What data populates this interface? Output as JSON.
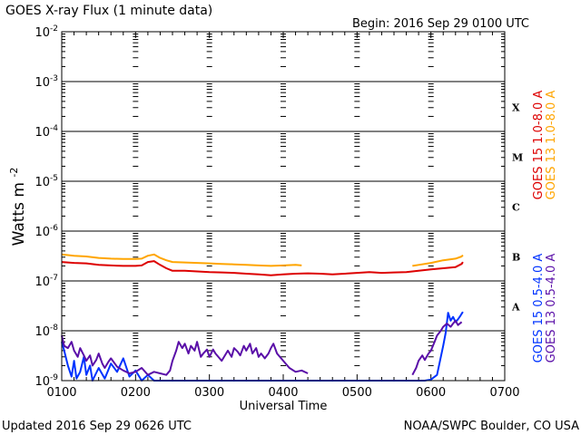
{
  "title": "GOES X-ray Flux (1 minute data)",
  "begin_label": "Begin: 2016 Sep 29 0100 UTC",
  "footer_left": "Updated 2016 Sep 29 0626 UTC",
  "footer_right": "NOAA/SWPC Boulder, CO USA",
  "colors": {
    "goes15_long": "#dd0000",
    "goes13_long": "#ffa500",
    "goes15_short": "#0033ff",
    "goes13_short": "#5a0fa8"
  },
  "chart_data": {
    "type": "line",
    "xlabel": "Universal Time",
    "ylabel": "Watts m",
    "ylabel_exponent": "-2",
    "y_scale": "log",
    "ylim": [
      1e-09,
      0.01
    ],
    "xlim": [
      "0100",
      "0700"
    ],
    "x_ticks": [
      "0100",
      "0200",
      "0300",
      "0400",
      "0500",
      "0600",
      "0700"
    ],
    "y_ticks": [
      {
        "base": "10",
        "exp": "-2"
      },
      {
        "base": "10",
        "exp": "-3"
      },
      {
        "base": "10",
        "exp": "-4"
      },
      {
        "base": "10",
        "exp": "-5"
      },
      {
        "base": "10",
        "exp": "-6"
      },
      {
        "base": "10",
        "exp": "-7"
      },
      {
        "base": "10",
        "exp": "-8"
      },
      {
        "base": "10",
        "exp": "-9"
      }
    ],
    "flare_classes": [
      {
        "label": "X",
        "level": 0.0001
      },
      {
        "label": "M",
        "level": 1e-05
      },
      {
        "label": "C",
        "level": 1e-06
      },
      {
        "label": "B",
        "level": 1e-07
      },
      {
        "label": "A",
        "level": 1e-08
      }
    ],
    "grid": true,
    "legend_position": "right",
    "series": [
      {
        "name": "GOES 15 1.0-8.0 A",
        "color_key": "goes15_long",
        "points": [
          [
            "0100",
            2.4e-07
          ],
          [
            "0110",
            2.3e-07
          ],
          [
            "0120",
            2.25e-07
          ],
          [
            "0130",
            2.1e-07
          ],
          [
            "0140",
            2.05e-07
          ],
          [
            "0150",
            2e-07
          ],
          [
            "0200",
            2e-07
          ],
          [
            "0205",
            2.05e-07
          ],
          [
            "0210",
            2.4e-07
          ],
          [
            "0215",
            2.5e-07
          ],
          [
            "0220",
            2.1e-07
          ],
          [
            "0225",
            1.8e-07
          ],
          [
            "0230",
            1.6e-07
          ],
          [
            "0240",
            1.6e-07
          ],
          [
            "0250",
            1.55e-07
          ],
          [
            "0300",
            1.5e-07
          ],
          [
            "0310",
            1.48e-07
          ],
          [
            "0320",
            1.45e-07
          ],
          [
            "0330",
            1.4e-07
          ],
          [
            "0340",
            1.35e-07
          ],
          [
            "0350",
            1.3e-07
          ],
          [
            "0400",
            1.35e-07
          ],
          [
            "0410",
            1.4e-07
          ],
          [
            "0420",
            1.42e-07
          ],
          [
            "0430",
            1.4e-07
          ],
          [
            "0440",
            1.35e-07
          ],
          [
            "0450",
            1.4e-07
          ],
          [
            "0500",
            1.45e-07
          ],
          [
            "0510",
            1.5e-07
          ],
          [
            "0520",
            1.45e-07
          ],
          [
            "0530",
            1.48e-07
          ],
          [
            "0540",
            1.5e-07
          ],
          [
            "0550",
            1.6e-07
          ],
          [
            "0600",
            1.7e-07
          ],
          [
            "0610",
            1.8e-07
          ],
          [
            "0620",
            1.9e-07
          ],
          [
            "0625",
            2.2e-07
          ],
          [
            "0626",
            2.4e-07
          ]
        ]
      },
      {
        "name": "GOES 13 1.0-8.0 A",
        "color_key": "goes13_long",
        "segments": [
          [
            [
              "0100",
              3.4e-07
            ],
            [
              "0110",
              3.2e-07
            ],
            [
              "0120",
              3.1e-07
            ],
            [
              "0130",
              2.9e-07
            ],
            [
              "0140",
              2.8e-07
            ],
            [
              "0150",
              2.75e-07
            ],
            [
              "0200",
              2.75e-07
            ],
            [
              "0205",
              2.8e-07
            ],
            [
              "0210",
              3.2e-07
            ],
            [
              "0215",
              3.4e-07
            ],
            [
              "0220",
              2.9e-07
            ],
            [
              "0225",
              2.6e-07
            ],
            [
              "0230",
              2.4e-07
            ],
            [
              "0240",
              2.35e-07
            ],
            [
              "0250",
              2.3e-07
            ],
            [
              "0300",
              2.25e-07
            ],
            [
              "0310",
              2.2e-07
            ],
            [
              "0320",
              2.15e-07
            ],
            [
              "0330",
              2.1e-07
            ],
            [
              "0340",
              2.05e-07
            ],
            [
              "0350",
              2e-07
            ],
            [
              "0400",
              2.05e-07
            ],
            [
              "0410",
              2.1e-07
            ],
            [
              "0415",
              2.05e-07
            ]
          ],
          [
            [
              "0545",
              2e-07
            ],
            [
              "0550",
              2.1e-07
            ],
            [
              "0600",
              2.3e-07
            ],
            [
              "0610",
              2.6e-07
            ],
            [
              "0620",
              2.8e-07
            ],
            [
              "0625",
              3.1e-07
            ],
            [
              "0626",
              3.3e-07
            ]
          ]
        ]
      },
      {
        "name": "GOES 15 0.5-4.0 A",
        "color_key": "goes15_short",
        "points": [
          [
            "0100",
            6e-09
          ],
          [
            "0102",
            4e-09
          ],
          [
            "0105",
            2e-09
          ],
          [
            "0108",
            1.2e-09
          ],
          [
            "0110",
            2.5e-09
          ],
          [
            "0112",
            1.1e-09
          ],
          [
            "0115",
            1.5e-09
          ],
          [
            "0118",
            3e-09
          ],
          [
            "0120",
            1.3e-09
          ],
          [
            "0123",
            2e-09
          ],
          [
            "0125",
            1e-09
          ],
          [
            "0130",
            1.8e-09
          ],
          [
            "0135",
            1.1e-09
          ],
          [
            "0140",
            2.2e-09
          ],
          [
            "0145",
            1.5e-09
          ],
          [
            "0150",
            2.8e-09
          ],
          [
            "0155",
            1.2e-09
          ],
          [
            "0200",
            1.6e-09
          ],
          [
            "0205",
            1e-09
          ],
          [
            "0210",
            1.3e-09
          ],
          [
            "0215",
            1e-09
          ],
          [
            "0300",
            1e-09
          ],
          [
            "0400",
            1e-09
          ],
          [
            "0500",
            1e-09
          ],
          [
            "0540",
            1e-09
          ],
          [
            "0550",
            1e-09
          ],
          [
            "0555",
            1e-09
          ],
          [
            "0600",
            1.05e-09
          ],
          [
            "0605",
            1.3e-09
          ],
          [
            "0610",
            5e-09
          ],
          [
            "0612",
            9e-09
          ],
          [
            "0614",
            2.3e-08
          ],
          [
            "0616",
            1.6e-08
          ],
          [
            "0618",
            1.9e-08
          ],
          [
            "0620",
            1.5e-08
          ],
          [
            "0622",
            1.7e-08
          ],
          [
            "0624",
            2e-08
          ],
          [
            "0626",
            2.4e-08
          ]
        ]
      },
      {
        "name": "GOES 13 0.5-4.0 A",
        "color_key": "goes13_short",
        "segments": [
          [
            [
              "0100",
              8e-09
            ],
            [
              "0102",
              5e-09
            ],
            [
              "0105",
              4.5e-09
            ],
            [
              "0108",
              6e-09
            ],
            [
              "0110",
              4e-09
            ],
            [
              "0113",
              3e-09
            ],
            [
              "0115",
              4.5e-09
            ],
            [
              "0118",
              3.2e-09
            ],
            [
              "0120",
              2.5e-09
            ],
            [
              "0123",
              3.2e-09
            ],
            [
              "0125",
              2e-09
            ],
            [
              "0128",
              2.6e-09
            ],
            [
              "0130",
              3.5e-09
            ],
            [
              "0133",
              2.2e-09
            ],
            [
              "0135",
              1.8e-09
            ],
            [
              "0138",
              2.4e-09
            ],
            [
              "0140",
              2.8e-09
            ],
            [
              "0145",
              1.9e-09
            ],
            [
              "0150",
              1.6e-09
            ],
            [
              "0155",
              1.4e-09
            ],
            [
              "0200",
              1.5e-09
            ],
            [
              "0205",
              1.8e-09
            ],
            [
              "0210",
              1.3e-09
            ],
            [
              "0215",
              1.5e-09
            ],
            [
              "0220",
              1.4e-09
            ],
            [
              "0225",
              1.3e-09
            ],
            [
              "0228",
              1.6e-09
            ],
            [
              "0230",
              2.5e-09
            ],
            [
              "0233",
              4e-09
            ],
            [
              "0235",
              6e-09
            ],
            [
              "0238",
              4.5e-09
            ],
            [
              "0240",
              5.5e-09
            ],
            [
              "0243",
              3.5e-09
            ],
            [
              "0245",
              5e-09
            ],
            [
              "0248",
              4e-09
            ],
            [
              "0250",
              6e-09
            ],
            [
              "0253",
              3e-09
            ],
            [
              "0255",
              3.5e-09
            ],
            [
              "0258",
              4.2e-09
            ],
            [
              "0300",
              3e-09
            ],
            [
              "0303",
              4.2e-09
            ],
            [
              "0305",
              3.5e-09
            ],
            [
              "0310",
              2.5e-09
            ],
            [
              "0315",
              4e-09
            ],
            [
              "0318",
              3e-09
            ],
            [
              "0320",
              4.5e-09
            ],
            [
              "0323",
              3.8e-09
            ],
            [
              "0325",
              3.2e-09
            ],
            [
              "0328",
              5e-09
            ],
            [
              "0330",
              4e-09
            ],
            [
              "0333",
              5.5e-09
            ],
            [
              "0335",
              3.5e-09
            ],
            [
              "0338",
              4.5e-09
            ],
            [
              "0340",
              3e-09
            ],
            [
              "0342",
              3.5e-09
            ],
            [
              "0345",
              2.8e-09
            ],
            [
              "0348",
              3.5e-09
            ],
            [
              "0350",
              4.5e-09
            ],
            [
              "0352",
              5.5e-09
            ],
            [
              "0355",
              3.5e-09
            ],
            [
              "0400",
              2.5e-09
            ],
            [
              "0405",
              1.8e-09
            ],
            [
              "0410",
              1.5e-09
            ],
            [
              "0415",
              1.6e-09
            ],
            [
              "0420",
              1.4e-09
            ]
          ],
          [
            [
              "0545",
              1.3e-09
            ],
            [
              "0548",
              1.8e-09
            ],
            [
              "0550",
              2.5e-09
            ],
            [
              "0553",
              3.2e-09
            ],
            [
              "0555",
              2.6e-09
            ],
            [
              "0558",
              3.5e-09
            ],
            [
              "0600",
              4e-09
            ],
            [
              "0603",
              6e-09
            ],
            [
              "0605",
              8e-09
            ],
            [
              "0608",
              1e-08
            ],
            [
              "0610",
              1.2e-08
            ],
            [
              "0613",
              1.4e-08
            ],
            [
              "0616",
              1.2e-08
            ],
            [
              "0618",
              1.4e-08
            ],
            [
              "0620",
              1.6e-08
            ],
            [
              "0622",
              1.3e-08
            ],
            [
              "0625",
              1.5e-08
            ]
          ]
        ]
      }
    ]
  }
}
